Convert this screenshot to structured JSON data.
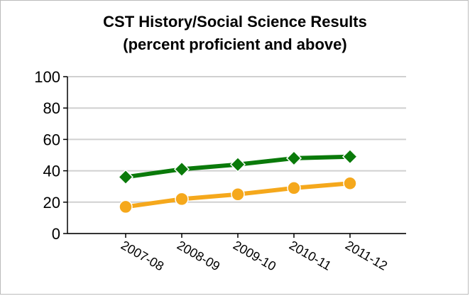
{
  "chart_data": {
    "type": "line",
    "title": [
      "CST History/Social Science Results",
      "(percent proficient and above)"
    ],
    "categories": [
      "2007-08",
      "2008-09",
      "2009-10",
      "2010-11",
      "2011-12"
    ],
    "series": [
      {
        "color": "#0a7a0a",
        "marker": "diamond",
        "values": [
          36,
          41,
          44,
          48,
          49
        ]
      },
      {
        "color": "#f5a81c",
        "marker": "circle",
        "values": [
          17,
          22,
          25,
          29,
          32
        ]
      }
    ],
    "ylim": [
      0,
      100
    ],
    "yticks": [
      0,
      20,
      40,
      60,
      80,
      100
    ],
    "grid": true
  }
}
